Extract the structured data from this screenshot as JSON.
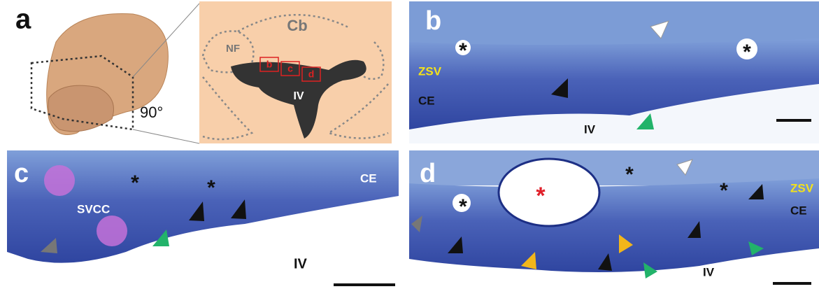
{
  "figure": {
    "panel_a": {
      "letter": "a",
      "angle": "90°",
      "schematic": {
        "region": "Cb",
        "nucleus": "NF",
        "ventricle": "IV",
        "boxes": [
          "b",
          "c",
          "d"
        ]
      }
    },
    "panel_b": {
      "letter": "b",
      "zone": "ZSV",
      "epithelium": "CE",
      "ventricle": "IV",
      "vessels": [
        "*",
        "*"
      ]
    },
    "panel_c": {
      "letter": "c",
      "cluster": "SVCC",
      "epithelium": "CE",
      "ventricle": "IV",
      "vessels": [
        "*",
        "*"
      ]
    },
    "panel_d": {
      "letter": "d",
      "large_vessel": "*",
      "zone": "ZSV",
      "epithelium": "CE",
      "ventricle": "IV",
      "vessels": [
        "*",
        "*",
        "*"
      ]
    }
  }
}
